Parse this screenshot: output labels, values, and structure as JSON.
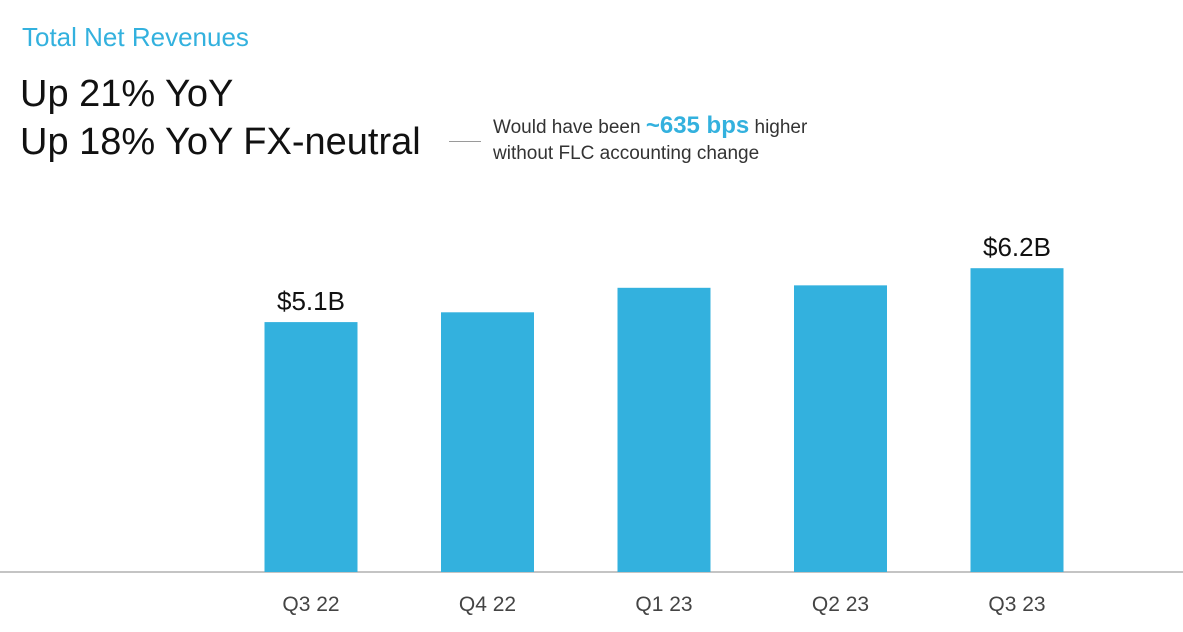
{
  "header": {
    "subtitle": "Total Net Revenues",
    "line1": "Up 21% YoY",
    "line2": "Up 18% YoY FX-neutral"
  },
  "note": {
    "prefix": "Would have been ",
    "highlight": "~635 bps",
    "suffix": " higher",
    "line2": "without FLC accounting change"
  },
  "colors": {
    "bar": "#33b1de",
    "accent": "#33b1de",
    "axis": "#888888",
    "text": "#111111"
  },
  "chart_data": {
    "type": "bar",
    "categories": [
      "Q3 22",
      "Q4 22",
      "Q1 23",
      "Q2 23",
      "Q3 23"
    ],
    "values": [
      5.1,
      5.3,
      5.8,
      5.85,
      6.2
    ],
    "data_labels": [
      "$5.1B",
      "",
      "",
      "",
      "$6.2B"
    ],
    "unit": "B",
    "ylim": [
      0,
      7.0
    ],
    "grid": false,
    "legend": "none"
  }
}
